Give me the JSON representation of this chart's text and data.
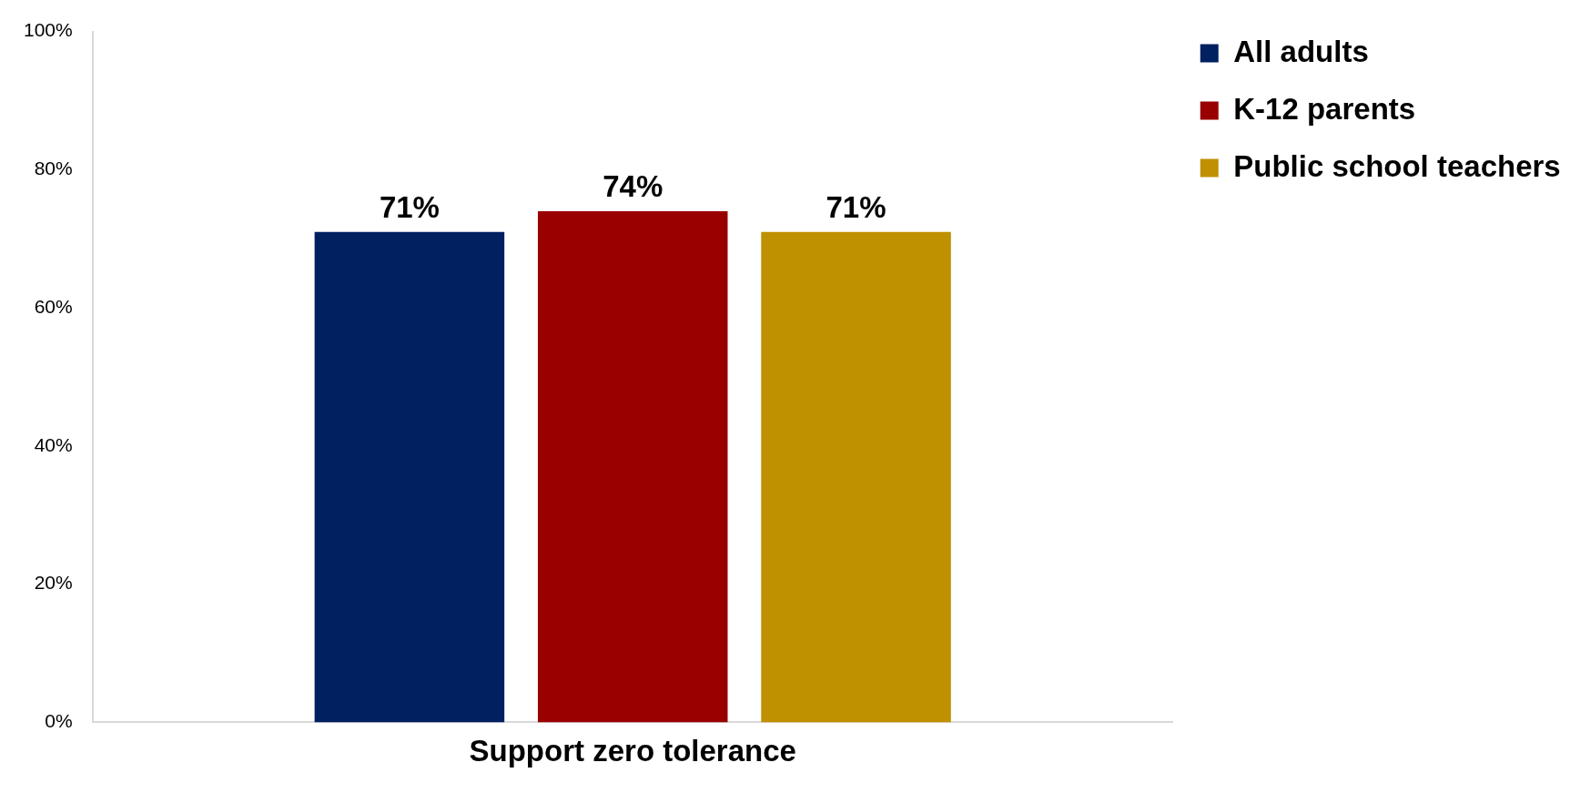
{
  "chart_data": {
    "type": "bar",
    "categories": [
      "Support zero tolerance"
    ],
    "series": [
      {
        "name": "All adults",
        "color": "#002060",
        "values": [
          71
        ],
        "value_labels": [
          "71%"
        ]
      },
      {
        "name": "K-12 parents",
        "color": "#990000",
        "values": [
          74
        ],
        "value_labels": [
          "74%"
        ]
      },
      {
        "name": "Public school teachers",
        "color": "#bf9000",
        "values": [
          71
        ],
        "value_labels": [
          "71%"
        ]
      }
    ],
    "ylim": [
      0,
      100
    ],
    "yticks": [
      {
        "value": 0,
        "label": "0%"
      },
      {
        "value": 20,
        "label": "20%"
      },
      {
        "value": 40,
        "label": "40%"
      },
      {
        "value": 60,
        "label": "60%"
      },
      {
        "value": 80,
        "label": "80%"
      },
      {
        "value": 100,
        "label": "100%"
      }
    ],
    "legend": "top right"
  }
}
